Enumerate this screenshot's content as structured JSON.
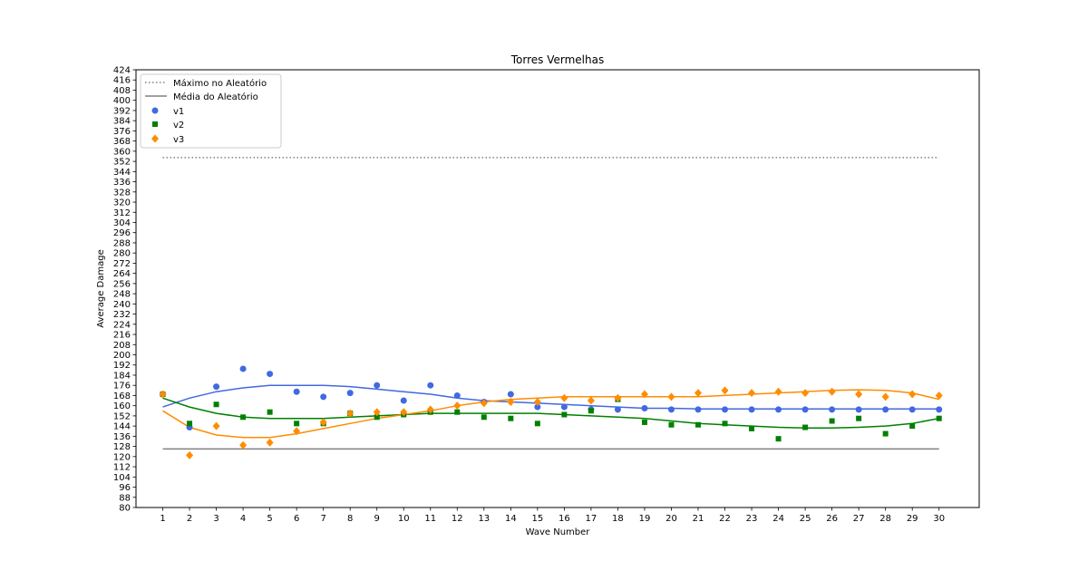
{
  "chart_data": {
    "type": "scatter",
    "title": "Torres Vermelhas",
    "xlabel": "Wave Number",
    "ylabel": "Average Damage",
    "x": [
      1,
      2,
      3,
      4,
      5,
      6,
      7,
      8,
      9,
      10,
      11,
      12,
      13,
      14,
      15,
      16,
      17,
      18,
      19,
      20,
      21,
      22,
      23,
      24,
      25,
      26,
      27,
      28,
      29,
      30
    ],
    "xlim": [
      0.0,
      31.5
    ],
    "ylim": [
      80,
      424
    ],
    "ytick_step": 8,
    "grid": false,
    "legend_position": "top-left",
    "reference_lines": [
      {
        "name": "Máximo no Aleatório",
        "value": 355,
        "style": "dotted",
        "color": "#808080"
      },
      {
        "name": "Média do Aleatório",
        "value": 126,
        "style": "solid",
        "color": "#808080"
      }
    ],
    "series": [
      {
        "name": "v1",
        "marker": "circle",
        "color": "#4169e1",
        "values": [
          169,
          143,
          175,
          189,
          185,
          171,
          167,
          170,
          176,
          164,
          176,
          168,
          163,
          169,
          159,
          159,
          157,
          157,
          158,
          157,
          157,
          157,
          157,
          157,
          157,
          157,
          157,
          157,
          157,
          157
        ],
        "trend": [
          159,
          166,
          171,
          174,
          176,
          176,
          176,
          175,
          173,
          171,
          169,
          166,
          164,
          163,
          162,
          161,
          160,
          159,
          158,
          158,
          157.5,
          157.5,
          157.5,
          157.5,
          157.5,
          157.5,
          157.5,
          157.5,
          157.5,
          157.5
        ]
      },
      {
        "name": "v2",
        "marker": "square",
        "color": "#008000",
        "values": [
          169,
          146,
          161,
          151,
          155,
          146,
          146,
          154,
          151,
          153,
          155,
          155,
          151,
          150,
          146,
          153,
          156,
          165,
          147,
          145,
          145,
          146,
          142,
          134,
          143,
          148,
          150,
          138,
          144,
          150
        ],
        "trend": [
          166,
          159,
          154,
          151,
          150,
          150,
          150,
          151,
          152,
          153,
          154,
          154,
          154,
          154,
          154,
          153,
          152,
          151,
          150,
          148,
          146,
          145,
          144,
          143,
          142.5,
          142.5,
          143,
          144,
          146,
          150
        ]
      },
      {
        "name": "v3",
        "marker": "diamond",
        "color": "#ff8c00",
        "values": [
          169,
          121,
          144,
          129,
          131,
          140,
          147,
          154,
          155,
          155,
          157,
          160,
          162,
          163,
          163,
          166,
          164,
          166,
          169,
          167,
          170,
          172,
          170,
          171,
          170,
          171,
          169,
          167,
          169,
          168
        ],
        "trend": [
          156,
          143,
          137,
          135,
          135,
          138,
          142,
          146,
          150,
          153,
          156,
          160,
          163,
          165,
          166,
          167,
          167,
          167,
          167,
          167,
          167,
          168,
          169,
          170,
          171,
          172,
          172.5,
          172,
          170,
          165
        ]
      }
    ]
  }
}
